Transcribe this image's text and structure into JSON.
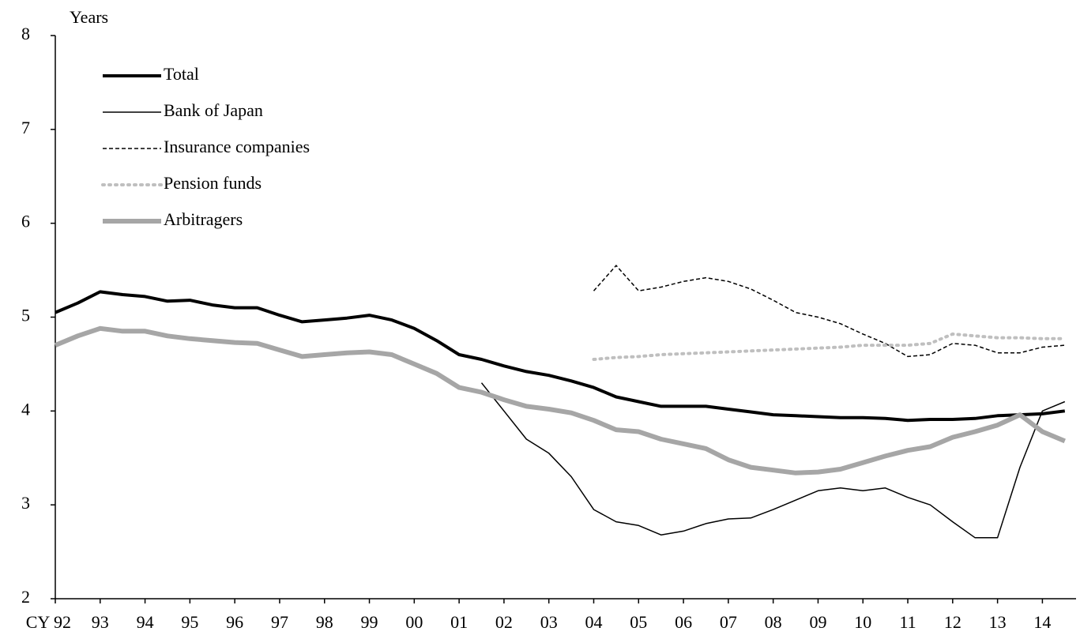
{
  "chart_data": {
    "type": "line",
    "y_label": "Years",
    "x": [
      1992,
      1992.5,
      1993,
      1993.5,
      1994,
      1994.5,
      1995,
      1995.5,
      1996,
      1996.5,
      1997,
      1997.5,
      1998,
      1998.5,
      1999,
      1999.5,
      2000,
      2000.5,
      2001,
      2001.5,
      2002,
      2002.5,
      2003,
      2003.5,
      2004,
      2004.5,
      2005,
      2005.5,
      2006,
      2006.5,
      2007,
      2007.5,
      2008,
      2008.5,
      2009,
      2009.5,
      2010,
      2010.5,
      2011,
      2011.5,
      2012,
      2012.5,
      2013,
      2013.5,
      2014,
      2014.5
    ],
    "xlim": [
      1992,
      2014.75
    ],
    "xticks": [
      {
        "value": 1992,
        "label": "CY 92"
      },
      {
        "value": 1993,
        "label": "93"
      },
      {
        "value": 1994,
        "label": "94"
      },
      {
        "value": 1995,
        "label": "95"
      },
      {
        "value": 1996,
        "label": "96"
      },
      {
        "value": 1997,
        "label": "97"
      },
      {
        "value": 1998,
        "label": "98"
      },
      {
        "value": 1999,
        "label": "99"
      },
      {
        "value": 2000,
        "label": "00"
      },
      {
        "value": 2001,
        "label": "01"
      },
      {
        "value": 2002,
        "label": "02"
      },
      {
        "value": 2003,
        "label": "03"
      },
      {
        "value": 2004,
        "label": "04"
      },
      {
        "value": 2005,
        "label": "05"
      },
      {
        "value": 2006,
        "label": "06"
      },
      {
        "value": 2007,
        "label": "07"
      },
      {
        "value": 2008,
        "label": "08"
      },
      {
        "value": 2009,
        "label": "09"
      },
      {
        "value": 2010,
        "label": "10"
      },
      {
        "value": 2011,
        "label": "11"
      },
      {
        "value": 2012,
        "label": "12"
      },
      {
        "value": 2013,
        "label": "13"
      },
      {
        "value": 2014,
        "label": "14"
      }
    ],
    "ylim": [
      2,
      8
    ],
    "yticks": [
      2,
      3,
      4,
      5,
      6,
      7,
      8
    ],
    "series": [
      {
        "name": "Total",
        "color": "#000000",
        "line_width": 4,
        "dash": "solid",
        "values": [
          5.05,
          5.15,
          5.27,
          5.24,
          5.22,
          5.17,
          5.18,
          5.13,
          5.1,
          5.1,
          5.02,
          4.95,
          4.97,
          4.99,
          5.02,
          4.97,
          4.88,
          4.75,
          4.6,
          4.55,
          4.48,
          4.42,
          4.38,
          4.32,
          4.25,
          4.15,
          4.1,
          4.05,
          4.05,
          4.05,
          4.02,
          3.99,
          3.96,
          3.95,
          3.94,
          3.93,
          3.93,
          3.92,
          3.9,
          3.91,
          3.91,
          3.92,
          3.95,
          3.96,
          3.97,
          4.0
        ]
      },
      {
        "name": "Bank of Japan",
        "color": "#000000",
        "line_width": 1.5,
        "dash": "solid",
        "values": [
          null,
          null,
          null,
          null,
          null,
          null,
          null,
          null,
          null,
          null,
          null,
          null,
          null,
          null,
          null,
          null,
          null,
          null,
          null,
          4.3,
          4.0,
          3.7,
          3.55,
          3.3,
          2.95,
          2.82,
          2.78,
          2.68,
          2.72,
          2.8,
          2.85,
          2.86,
          2.95,
          3.05,
          3.15,
          3.18,
          3.15,
          3.18,
          3.08,
          3.0,
          2.82,
          2.65,
          2.65,
          3.4,
          4.0,
          4.1
        ]
      },
      {
        "name": "Insurance companies",
        "color": "#000000",
        "line_width": 1.5,
        "dash": "dashed",
        "values": [
          null,
          null,
          null,
          null,
          null,
          null,
          null,
          null,
          null,
          null,
          null,
          null,
          null,
          null,
          null,
          null,
          null,
          null,
          null,
          null,
          null,
          null,
          null,
          null,
          5.28,
          5.55,
          5.28,
          5.32,
          5.38,
          5.42,
          5.38,
          5.3,
          5.18,
          5.05,
          5.0,
          4.93,
          4.82,
          4.72,
          4.58,
          4.6,
          4.72,
          4.7,
          4.62,
          4.62,
          4.68,
          4.7
        ]
      },
      {
        "name": "Pension funds",
        "color": "#bfbfbf",
        "line_width": 4,
        "dash": "dotted",
        "values": [
          null,
          null,
          null,
          null,
          null,
          null,
          null,
          null,
          null,
          null,
          null,
          null,
          null,
          null,
          null,
          null,
          null,
          null,
          null,
          null,
          null,
          null,
          null,
          null,
          4.55,
          4.57,
          4.58,
          4.6,
          4.61,
          4.62,
          4.63,
          4.64,
          4.65,
          4.66,
          4.67,
          4.68,
          4.7,
          4.7,
          4.7,
          4.72,
          4.82,
          4.8,
          4.78,
          4.78,
          4.77,
          4.77
        ]
      },
      {
        "name": "Arbitragers",
        "color": "#a6a6a6",
        "line_width": 6,
        "dash": "solid",
        "values": [
          4.7,
          4.8,
          4.88,
          4.85,
          4.85,
          4.8,
          4.77,
          4.75,
          4.73,
          4.72,
          4.65,
          4.58,
          4.6,
          4.62,
          4.63,
          4.6,
          4.5,
          4.4,
          4.25,
          4.2,
          4.12,
          4.05,
          4.02,
          3.98,
          3.9,
          3.8,
          3.78,
          3.7,
          3.65,
          3.6,
          3.48,
          3.4,
          3.37,
          3.34,
          3.35,
          3.38,
          3.45,
          3.52,
          3.58,
          3.62,
          3.72,
          3.78,
          3.85,
          3.96,
          3.78,
          3.68
        ]
      }
    ]
  }
}
